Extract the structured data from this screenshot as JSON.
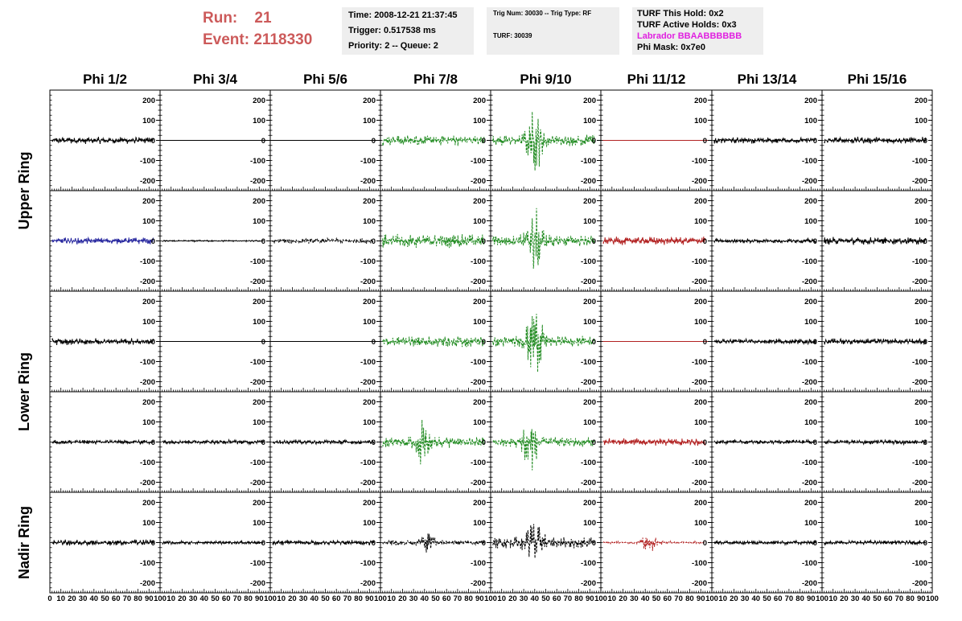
{
  "header": {
    "run_label": "Run:",
    "run_value": "21",
    "event_label": "Event:",
    "event_value": "2118330",
    "time": "Time: 2008-12-21 21:37:45",
    "trigger": "Trigger: 0.517538 ms",
    "priority": "Priority: 2 -- Queue: 2",
    "trig_num": "Trig Num: 30030 -- Trig Type: RF",
    "turf": "TURF: 30039",
    "turf_hold": "TURF This Hold: 0x2",
    "turf_active": "TURF Active Holds: 0x3",
    "labrador": "Labrador BBAABBBBBB",
    "phi_mask": "Phi Mask: 0x7e0"
  },
  "colors": {
    "run_text": "#cc5a5a",
    "labrador_text": "#e020e0",
    "info_box_bg": "#eeeeee",
    "trace_black": "#000000",
    "trace_green": "#1f8a1f",
    "trace_red": "#b22222",
    "trace_blue": "#2a2aa0"
  },
  "chart_data": {
    "type": "line",
    "columns": [
      "Phi 1/2",
      "Phi 3/4",
      "Phi 5/6",
      "Phi 7/8",
      "Phi 9/10",
      "Phi 11/12",
      "Phi 13/14",
      "Phi 15/16"
    ],
    "ring_labels": [
      {
        "label": "Upper Ring",
        "rows": [
          0,
          1
        ]
      },
      {
        "label": "Lower Ring",
        "rows": [
          2,
          3
        ]
      },
      {
        "label": "Nadir Ring",
        "rows": [
          4
        ]
      }
    ],
    "xlim": [
      0,
      100
    ],
    "ylim": [
      -250,
      250
    ],
    "yticks": [
      -200,
      -100,
      0,
      100,
      200
    ],
    "ytick_labels": [
      "-200",
      "-100",
      "0",
      "100",
      "200"
    ],
    "xtick_labels": [
      [
        "0",
        "10",
        "20",
        "30",
        "40",
        "50",
        "60",
        "70",
        "80",
        "90",
        "100"
      ],
      [
        "10",
        "20",
        "30",
        "40",
        "50",
        "60",
        "70",
        "80",
        "90",
        "100"
      ],
      [
        "10",
        "20",
        "30",
        "40",
        "50",
        "60",
        "70",
        "80",
        "90",
        "100"
      ],
      [
        "10",
        "20",
        "30",
        "40",
        "50",
        "60",
        "70",
        "80",
        "90",
        "100"
      ],
      [
        "10",
        "20",
        "30",
        "40",
        "50",
        "60",
        "70",
        "80",
        "90",
        "100"
      ],
      [
        "10",
        "20",
        "30",
        "40",
        "50",
        "60",
        "70",
        "80",
        "90",
        "100"
      ],
      [
        "10",
        "20",
        "30",
        "40",
        "50",
        "60",
        "70",
        "80",
        "90",
        "100"
      ],
      [
        "10",
        "20",
        "30",
        "40",
        "50",
        "60",
        "70",
        "80",
        "90",
        "100"
      ]
    ],
    "panels": [
      [
        {
          "color": "black",
          "amp": 18,
          "style": "solid"
        },
        {
          "color": "black",
          "amp": 0,
          "style": "solid"
        },
        {
          "color": "black",
          "amp": 0,
          "style": "solid"
        },
        {
          "color": "green",
          "amp": 28,
          "style": "dashed"
        },
        {
          "color": "green",
          "amp": 30,
          "style": "dashed",
          "burst_center": 40,
          "burst_amp": 150
        },
        {
          "color": "red",
          "amp": 0,
          "style": "solid"
        },
        {
          "color": "black",
          "amp": 16,
          "style": "solid"
        },
        {
          "color": "black",
          "amp": 18,
          "style": "solid"
        }
      ],
      [
        {
          "color": "blue",
          "amp": 18,
          "style": "solid"
        },
        {
          "color": "black",
          "amp": 4,
          "style": "solid"
        },
        {
          "color": "black",
          "amp": 14,
          "style": "dashed"
        },
        {
          "color": "green",
          "amp": 35,
          "style": "dashed"
        },
        {
          "color": "green",
          "amp": 30,
          "style": "dashed",
          "burst_center": 40,
          "burst_amp": 170
        },
        {
          "color": "red",
          "amp": 22,
          "style": "solid"
        },
        {
          "color": "black",
          "amp": 12,
          "style": "solid"
        },
        {
          "color": "black",
          "amp": 20,
          "style": "solid"
        }
      ],
      [
        {
          "color": "black",
          "amp": 18,
          "style": "solid"
        },
        {
          "color": "black",
          "amp": 0,
          "style": "solid"
        },
        {
          "color": "black",
          "amp": 0,
          "style": "solid"
        },
        {
          "color": "green",
          "amp": 30,
          "style": "dashed"
        },
        {
          "color": "green",
          "amp": 30,
          "style": "dashed",
          "burst_center": 40,
          "burst_amp": 180
        },
        {
          "color": "red",
          "amp": 0,
          "style": "solid"
        },
        {
          "color": "black",
          "amp": 14,
          "style": "solid"
        },
        {
          "color": "black",
          "amp": 16,
          "style": "solid"
        }
      ],
      [
        {
          "color": "black",
          "amp": 12,
          "style": "solid"
        },
        {
          "color": "black",
          "amp": 12,
          "style": "solid"
        },
        {
          "color": "black",
          "amp": 12,
          "style": "solid"
        },
        {
          "color": "green",
          "amp": 30,
          "style": "dashed",
          "burst_center": 38,
          "burst_amp": 90
        },
        {
          "color": "green",
          "amp": 25,
          "style": "dashed",
          "burst_center": 35,
          "burst_amp": 160
        },
        {
          "color": "red",
          "amp": 20,
          "style": "solid"
        },
        {
          "color": "black",
          "amp": 12,
          "style": "solid"
        },
        {
          "color": "black",
          "amp": 12,
          "style": "solid"
        }
      ],
      [
        {
          "color": "black",
          "amp": 16,
          "style": "solid"
        },
        {
          "color": "black",
          "amp": 10,
          "style": "solid"
        },
        {
          "color": "black",
          "amp": 14,
          "style": "solid"
        },
        {
          "color": "black",
          "amp": 14,
          "style": "dashed",
          "burst_center": 45,
          "burst_amp": 50
        },
        {
          "color": "black",
          "amp": 30,
          "style": "dashed",
          "burst_center": 40,
          "burst_amp": 120
        },
        {
          "color": "red",
          "amp": 6,
          "style": "dashed",
          "burst_center": 45,
          "burst_amp": 60
        },
        {
          "color": "black",
          "amp": 12,
          "style": "solid"
        },
        {
          "color": "black",
          "amp": 12,
          "style": "solid"
        }
      ]
    ]
  }
}
